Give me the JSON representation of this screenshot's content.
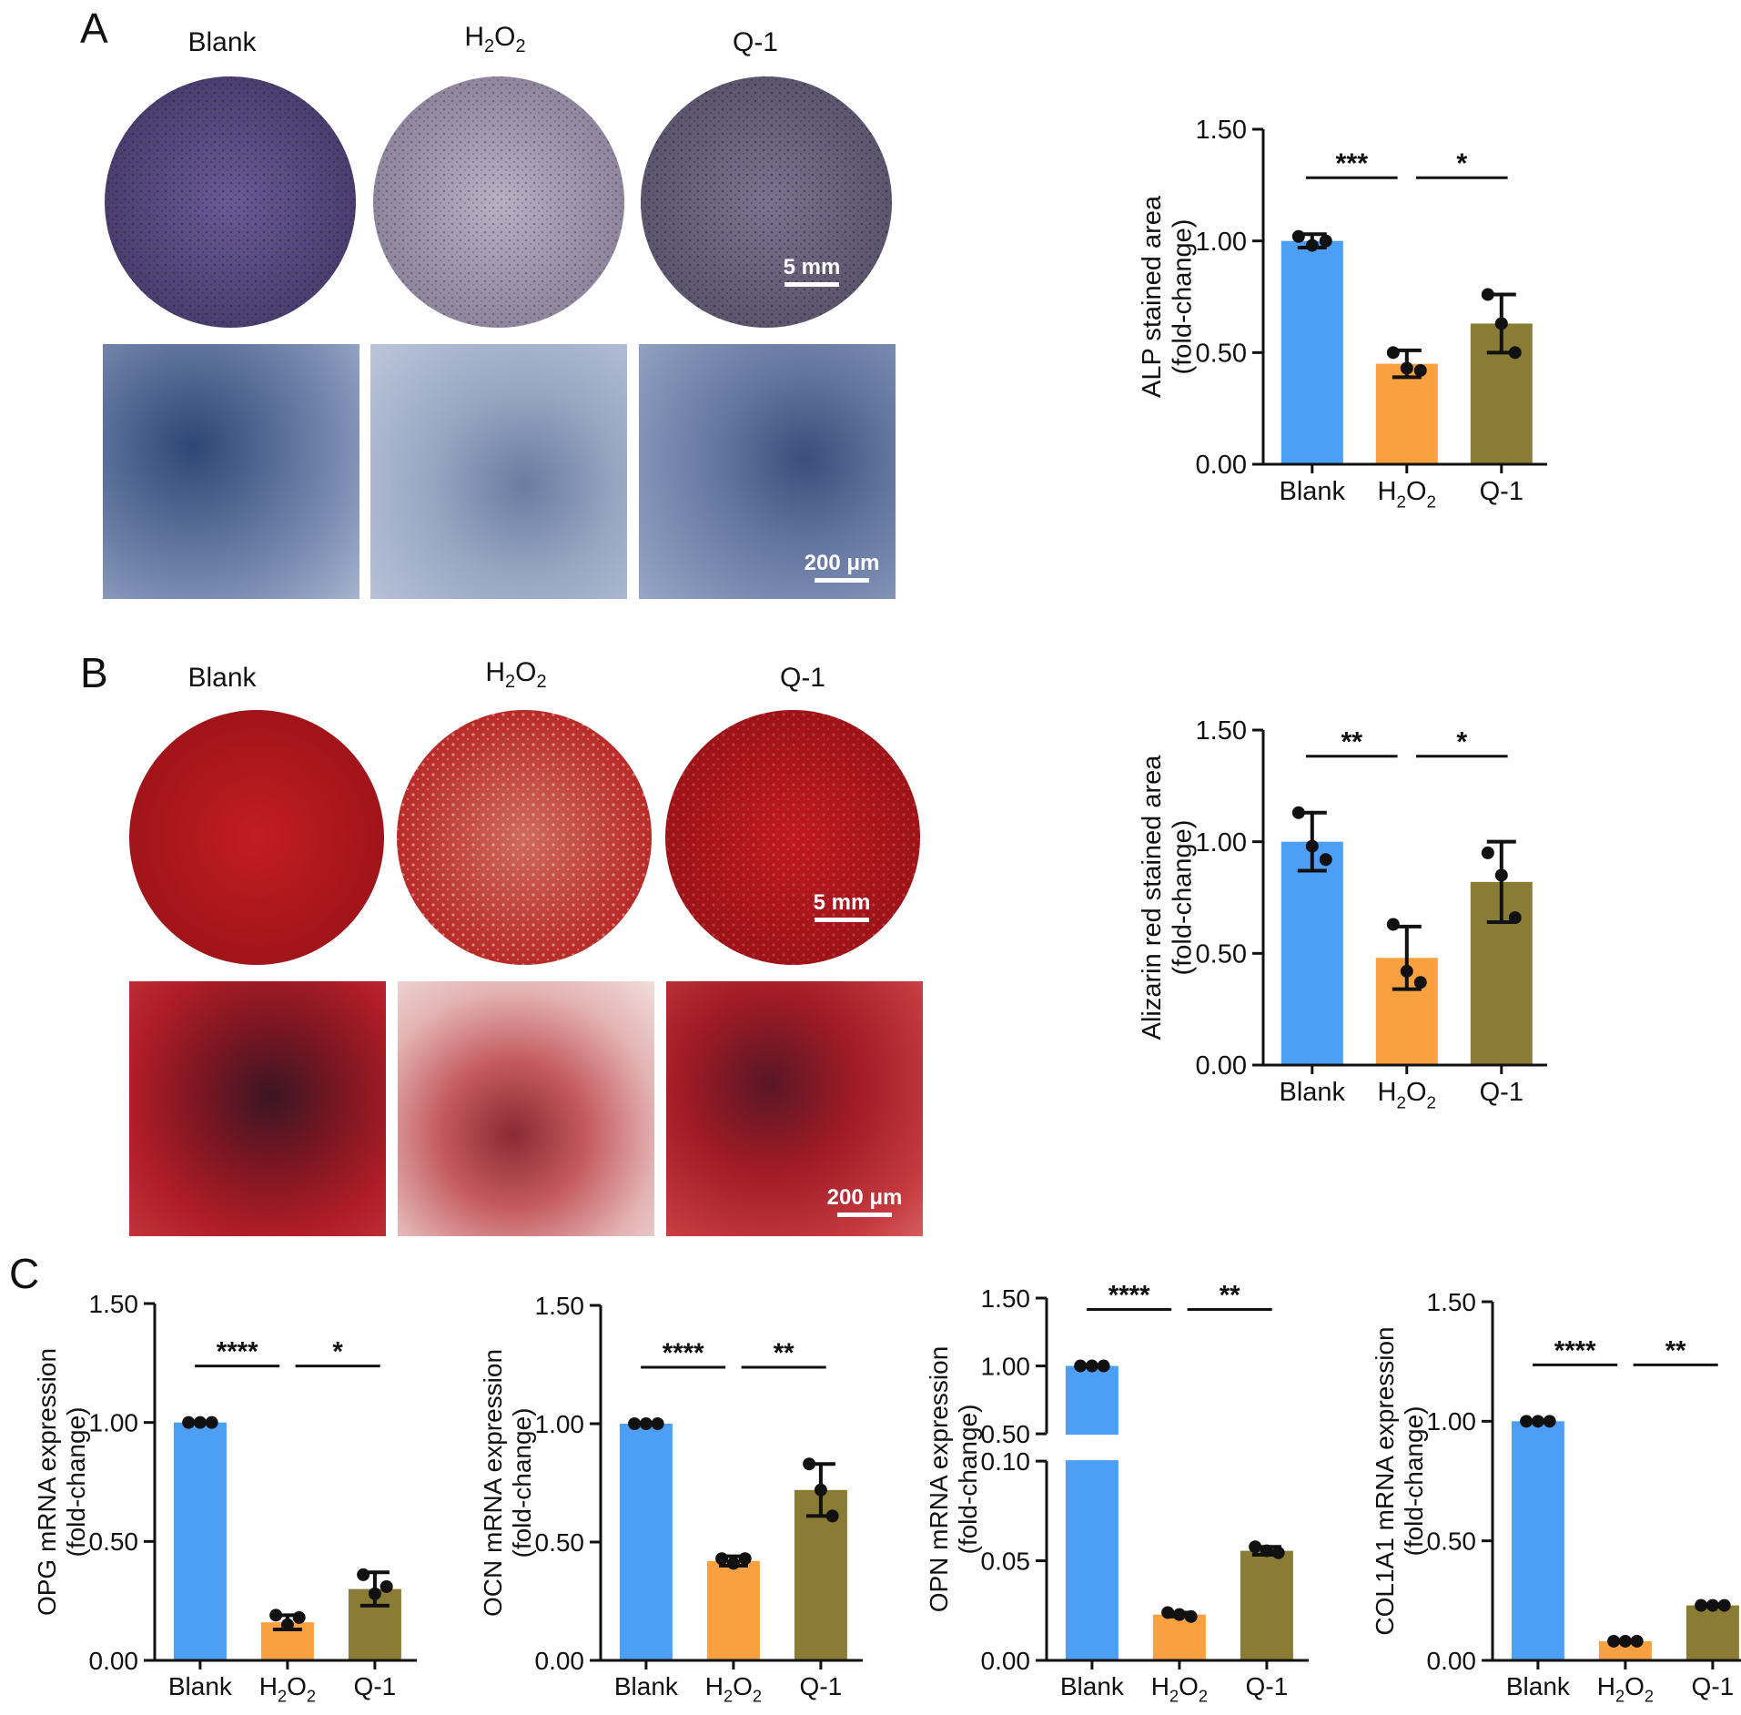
{
  "panels": {
    "A": {
      "letter": "A",
      "groups": [
        {
          "main": "Blank",
          "sub1": "",
          "mid": "",
          "sub2": ""
        },
        {
          "main": "H",
          "sub1": "2",
          "mid": "O",
          "sub2": "2"
        },
        {
          "main": "Q-1",
          "sub1": "",
          "mid": "",
          "sub2": ""
        }
      ],
      "scale_plate": "5 mm",
      "scale_micro": "200 μm",
      "plate_colors": [
        "#5e4f88",
        "#a79db4",
        "#6f6782"
      ],
      "micro_colors": [
        "#4f6286",
        "#8d9cb8",
        "#6a7aa0"
      ]
    },
    "B": {
      "letter": "B",
      "groups": [
        {
          "main": "Blank",
          "sub1": "",
          "mid": "",
          "sub2": ""
        },
        {
          "main": "H",
          "sub1": "2",
          "mid": "O",
          "sub2": "2"
        },
        {
          "main": "Q-1",
          "sub1": "",
          "mid": "",
          "sub2": ""
        }
      ],
      "scale_plate": "5 mm",
      "scale_micro": "200 μm",
      "plate_colors": [
        "#b8161d",
        "#c74b44",
        "#b51a1f"
      ],
      "micro_colors": [
        "#9e1620",
        "#dca4a6",
        "#b12229"
      ]
    },
    "C": {
      "letter": "C"
    }
  },
  "chart_data": [
    {
      "type": "bar",
      "categories": [
        "Blank",
        "H2O2",
        "Q-1"
      ],
      "values": [
        1.0,
        0.45,
        0.63
      ],
      "error": [
        0.03,
        0.06,
        0.13
      ],
      "points": [
        [
          1.02,
          0.98,
          1.0
        ],
        [
          0.5,
          0.43,
          0.42
        ],
        [
          0.76,
          0.63,
          0.5
        ]
      ],
      "ylabel_lines": [
        "ALP stained area",
        "(fold-change)"
      ],
      "ylim": [
        0,
        1.5
      ],
      "yticks": [
        "0.00",
        "0.50",
        "1.00",
        "1.50"
      ],
      "significance": [
        {
          "from": 0,
          "to": 1,
          "label": "***"
        },
        {
          "from": 1,
          "to": 2,
          "label": "*"
        }
      ],
      "colors": [
        "#4d9ff6",
        "#f9a040",
        "#8b7c35"
      ]
    },
    {
      "type": "bar",
      "categories": [
        "Blank",
        "H2O2",
        "Q-1"
      ],
      "values": [
        1.0,
        0.48,
        0.82
      ],
      "error": [
        0.13,
        0.14,
        0.18
      ],
      "points": [
        [
          1.13,
          0.98,
          0.92
        ],
        [
          0.63,
          0.42,
          0.37
        ],
        [
          0.95,
          0.85,
          0.66
        ]
      ],
      "ylabel_lines": [
        "Alizarin red stained area",
        "(fold-change)"
      ],
      "ylim": [
        0,
        1.5
      ],
      "yticks": [
        "0.00",
        "0.50",
        "1.00",
        "1.50"
      ],
      "significance": [
        {
          "from": 0,
          "to": 1,
          "label": "**"
        },
        {
          "from": 1,
          "to": 2,
          "label": "*"
        }
      ],
      "colors": [
        "#4d9ff6",
        "#f9a040",
        "#8b7c35"
      ]
    },
    {
      "type": "bar",
      "categories": [
        "Blank",
        "H2O2",
        "Q-1"
      ],
      "values": [
        1.0,
        0.16,
        0.3
      ],
      "error": [
        0.0,
        0.03,
        0.07
      ],
      "points": [
        [
          1.0,
          1.0,
          1.0
        ],
        [
          0.19,
          0.15,
          0.18
        ],
        [
          0.36,
          0.28,
          0.31
        ]
      ],
      "ylabel_lines": [
        "OPG mRNA expression",
        "(fold-change)"
      ],
      "ylim": [
        0,
        1.5
      ],
      "yticks": [
        "0.00",
        "0.50",
        "1.00",
        "1.50"
      ],
      "significance": [
        {
          "from": 0,
          "to": 1,
          "label": "****"
        },
        {
          "from": 1,
          "to": 2,
          "label": "*"
        }
      ],
      "colors": [
        "#4d9ff6",
        "#f9a040",
        "#8b7c35"
      ]
    },
    {
      "type": "bar",
      "categories": [
        "Blank",
        "H2O2",
        "Q-1"
      ],
      "values": [
        1.0,
        0.42,
        0.72
      ],
      "error": [
        0.0,
        0.02,
        0.11
      ],
      "points": [
        [
          1.0,
          1.0,
          1.0
        ],
        [
          0.43,
          0.41,
          0.43
        ],
        [
          0.83,
          0.72,
          0.61
        ]
      ],
      "ylabel_lines": [
        "OCN mRNA expression",
        "(fold-change)"
      ],
      "ylim": [
        0,
        1.5
      ],
      "yticks": [
        "0.00",
        "0.50",
        "1.00",
        "1.50"
      ],
      "significance": [
        {
          "from": 0,
          "to": 1,
          "label": "****"
        },
        {
          "from": 1,
          "to": 2,
          "label": "**"
        }
      ],
      "colors": [
        "#4d9ff6",
        "#f9a040",
        "#8b7c35"
      ]
    },
    {
      "type": "bar",
      "categories": [
        "Blank",
        "H2O2",
        "Q-1"
      ],
      "values": [
        1.0,
        0.023,
        0.055
      ],
      "error": [
        0.0,
        0.001,
        0.002
      ],
      "points": [
        [
          1.0,
          1.0,
          1.0
        ],
        [
          0.024,
          0.023,
          0.022
        ],
        [
          0.057,
          0.055,
          0.054
        ]
      ],
      "ylabel_lines": [
        "OPN mRNA expression",
        "(fold-change)"
      ],
      "broken_axis": {
        "lower": [
          0,
          0.1
        ],
        "upper": [
          0.5,
          1.5
        ]
      },
      "yticks": [
        "0.00",
        "0.05",
        "0.10",
        "0.50",
        "1.00",
        "1.50"
      ],
      "significance": [
        {
          "from": 0,
          "to": 1,
          "label": "****"
        },
        {
          "from": 1,
          "to": 2,
          "label": "**"
        }
      ],
      "colors": [
        "#4d9ff6",
        "#f9a040",
        "#8b7c35"
      ]
    },
    {
      "type": "bar",
      "categories": [
        "Blank",
        "H2O2",
        "Q-1"
      ],
      "values": [
        1.0,
        0.08,
        0.23
      ],
      "error": [
        0.0,
        0.005,
        0.005
      ],
      "points": [
        [
          1.0,
          1.0,
          1.0
        ],
        [
          0.08,
          0.08,
          0.08
        ],
        [
          0.23,
          0.23,
          0.23
        ]
      ],
      "ylabel_lines": [
        "COL1A1 mRNA expression",
        "(fold-change)"
      ],
      "ylim": [
        0,
        1.5
      ],
      "yticks": [
        "0.00",
        "0.50",
        "1.00",
        "1.50"
      ],
      "significance": [
        {
          "from": 0,
          "to": 1,
          "label": "****"
        },
        {
          "from": 1,
          "to": 2,
          "label": "**"
        }
      ],
      "colors": [
        "#4d9ff6",
        "#f9a040",
        "#8b7c35"
      ]
    }
  ]
}
